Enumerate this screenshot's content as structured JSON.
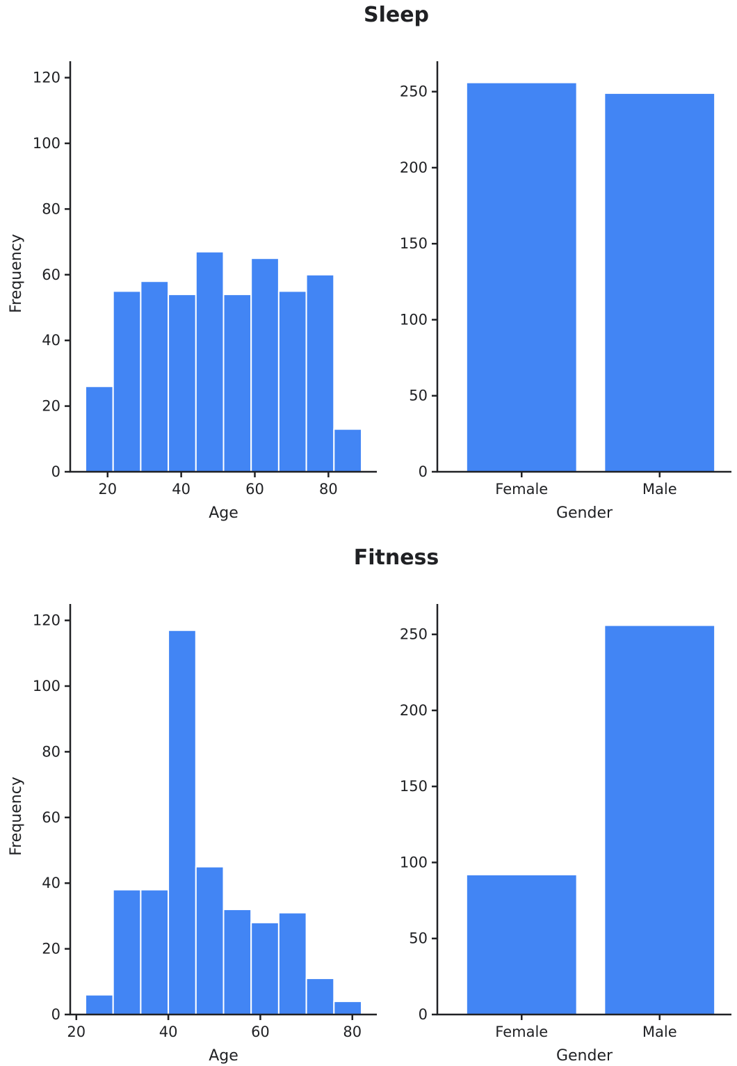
{
  "sections": [
    {
      "title": "Sleep"
    },
    {
      "title": "Fitness"
    }
  ],
  "colors": {
    "bar": "#4285f4",
    "axis": "#202124",
    "text": "#202124"
  },
  "chart_data": [
    {
      "id": "sleep-age",
      "type": "bar",
      "subtype": "histogram",
      "section": "Sleep",
      "xlabel": "Age",
      "ylabel": "Frequency",
      "bins": [
        [
          14,
          21.5
        ],
        [
          21.5,
          29
        ],
        [
          29,
          36.5
        ],
        [
          36.5,
          44
        ],
        [
          44,
          51.5
        ],
        [
          51.5,
          59
        ],
        [
          59,
          66.5
        ],
        [
          66.5,
          74
        ],
        [
          74,
          81.5
        ],
        [
          81.5,
          89
        ]
      ],
      "values": [
        26,
        55,
        58,
        54,
        67,
        54,
        65,
        55,
        60,
        13
      ],
      "xlim": [
        10,
        92
      ],
      "xticks": [
        20,
        40,
        60,
        80
      ],
      "ylim": [
        0,
        125
      ],
      "yticks": [
        0,
        20,
        40,
        60,
        80,
        100,
        120
      ],
      "grid": false
    },
    {
      "id": "sleep-gender",
      "type": "bar",
      "section": "Sleep",
      "xlabel": "Gender",
      "ylabel": "",
      "categories": [
        "Female",
        "Male"
      ],
      "values": [
        256,
        249
      ],
      "ylim": [
        0,
        270
      ],
      "yticks": [
        0,
        50,
        100,
        150,
        200,
        250
      ],
      "grid": false
    },
    {
      "id": "fitness-age",
      "type": "bar",
      "subtype": "histogram",
      "section": "Fitness",
      "xlabel": "Age",
      "ylabel": "Frequency",
      "bins": [
        [
          22,
          28
        ],
        [
          28,
          34
        ],
        [
          34,
          40
        ],
        [
          40,
          46
        ],
        [
          46,
          52
        ],
        [
          52,
          58
        ],
        [
          58,
          64
        ],
        [
          64,
          70
        ],
        [
          70,
          76
        ],
        [
          76,
          82
        ]
      ],
      "values": [
        6,
        38,
        38,
        117,
        45,
        32,
        28,
        31,
        11,
        4
      ],
      "xlim": [
        20,
        85
      ],
      "xticks": [
        20,
        40,
        60,
        80
      ],
      "ylim": [
        0,
        125
      ],
      "yticks": [
        0,
        20,
        40,
        60,
        80,
        100,
        120
      ],
      "grid": false
    },
    {
      "id": "fitness-gender",
      "type": "bar",
      "section": "Fitness",
      "xlabel": "Gender",
      "ylabel": "",
      "categories": [
        "Female",
        "Male"
      ],
      "values": [
        92,
        256
      ],
      "ylim": [
        0,
        270
      ],
      "yticks": [
        0,
        50,
        100,
        150,
        200,
        250
      ],
      "grid": false
    }
  ]
}
